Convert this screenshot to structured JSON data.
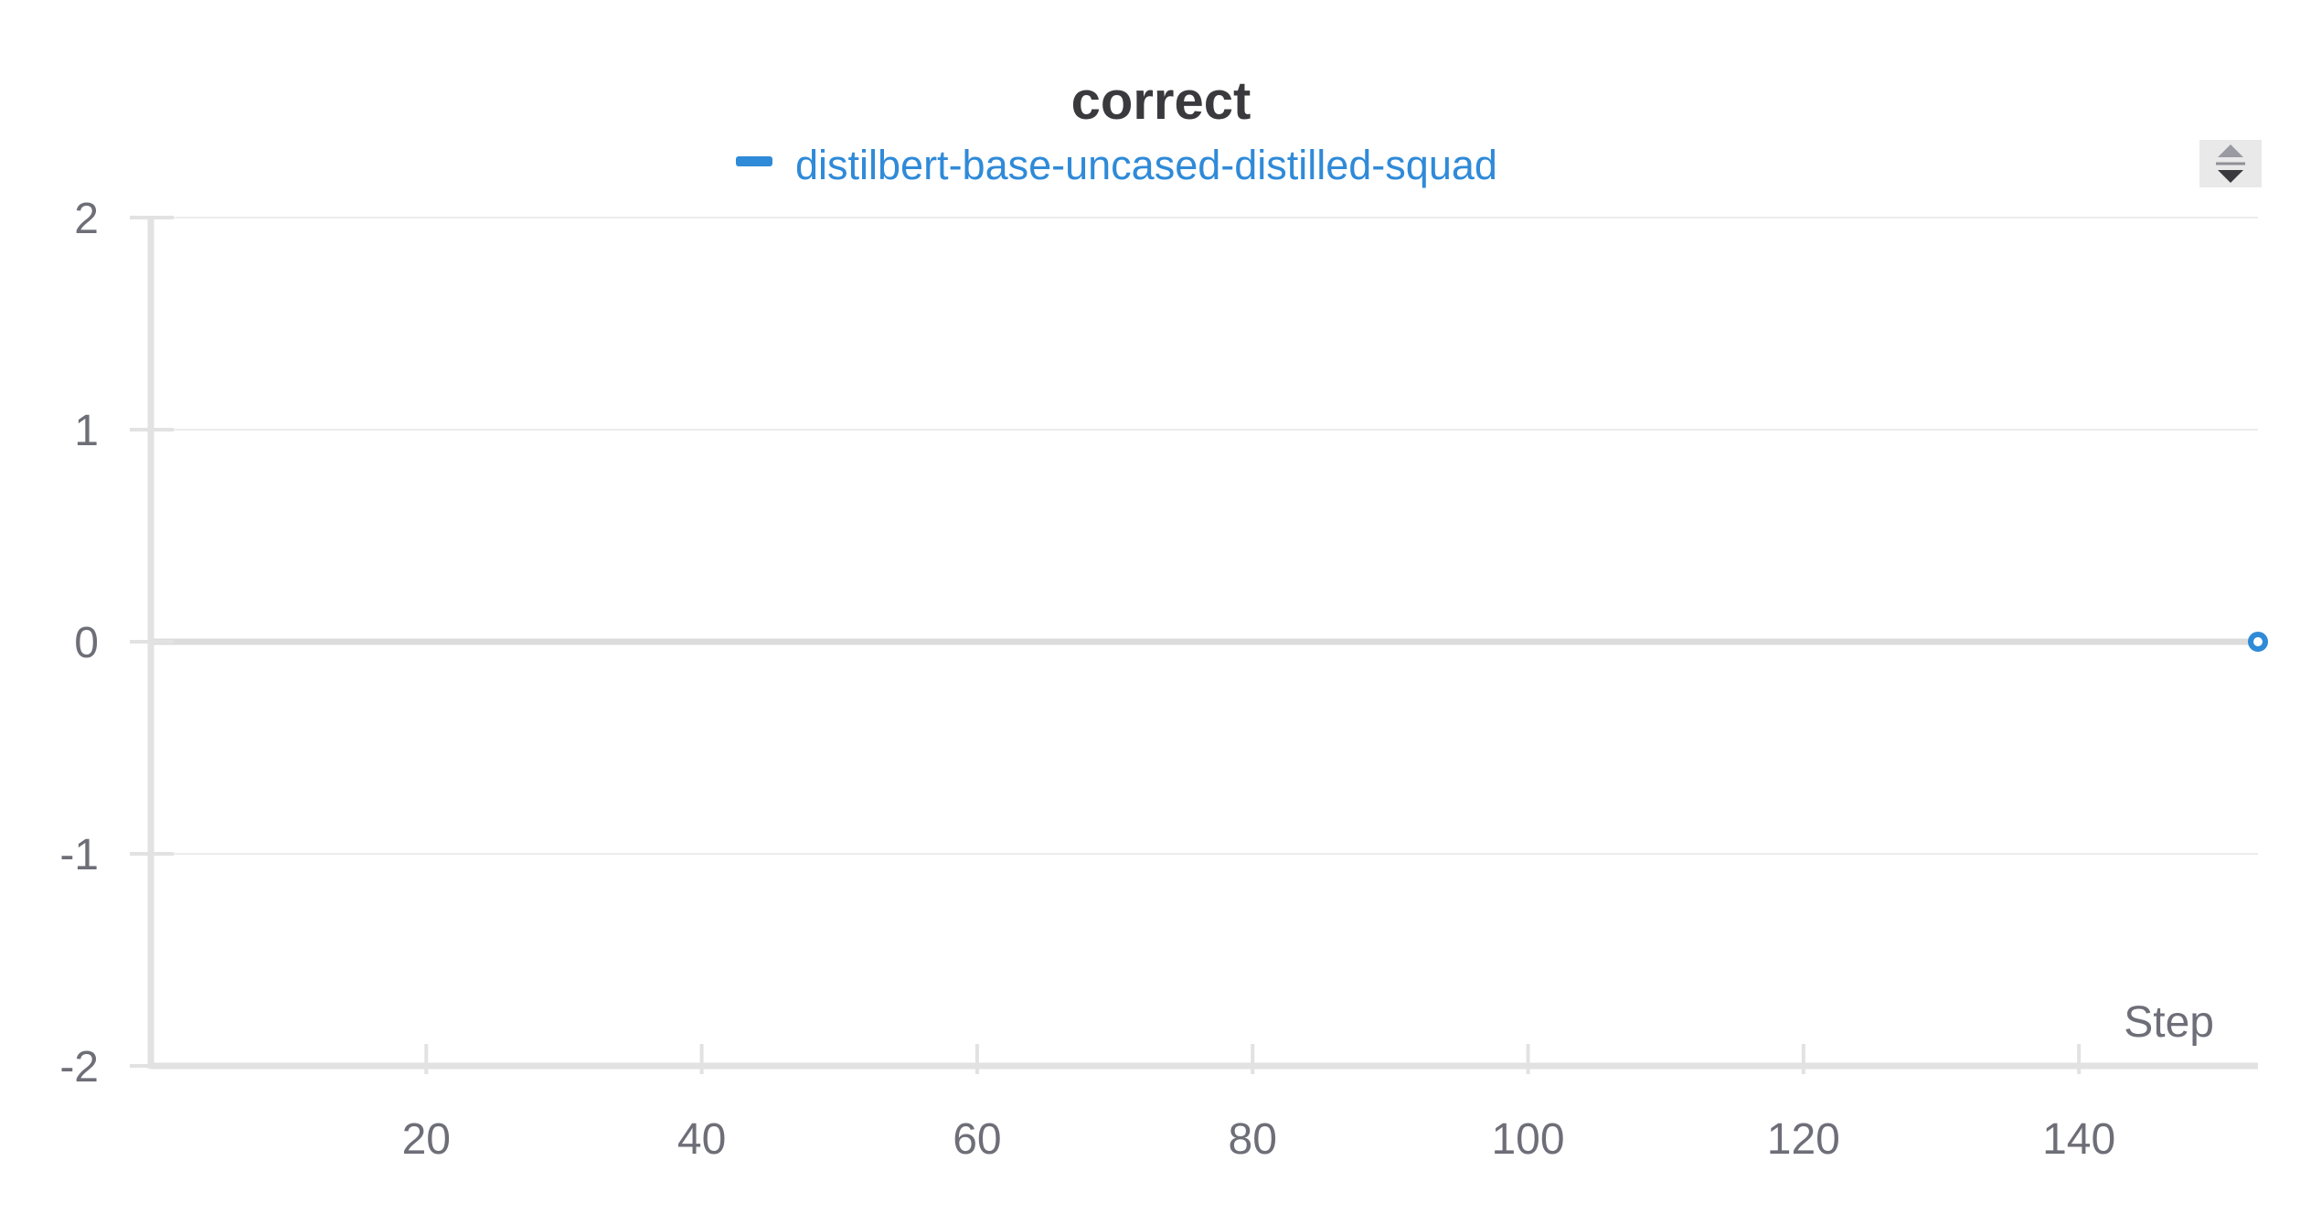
{
  "chart_data": {
    "type": "line",
    "title": "correct",
    "xlabel": "Step",
    "ylabel": "",
    "xlim": [
      0,
      153
    ],
    "ylim": [
      -2,
      2
    ],
    "x_ticks": [
      20,
      40,
      60,
      80,
      100,
      120,
      140
    ],
    "y_ticks": [
      2,
      1,
      0,
      -1,
      -2
    ],
    "grid": true,
    "legend_position": "top-center",
    "series": [
      {
        "name": "distilbert-base-uncased-distilled-squad",
        "color": "#2f8ad8",
        "x": [
          153
        ],
        "y": [
          0
        ]
      }
    ]
  },
  "controls": {
    "sort_icon": "sort-up-down-icon"
  }
}
